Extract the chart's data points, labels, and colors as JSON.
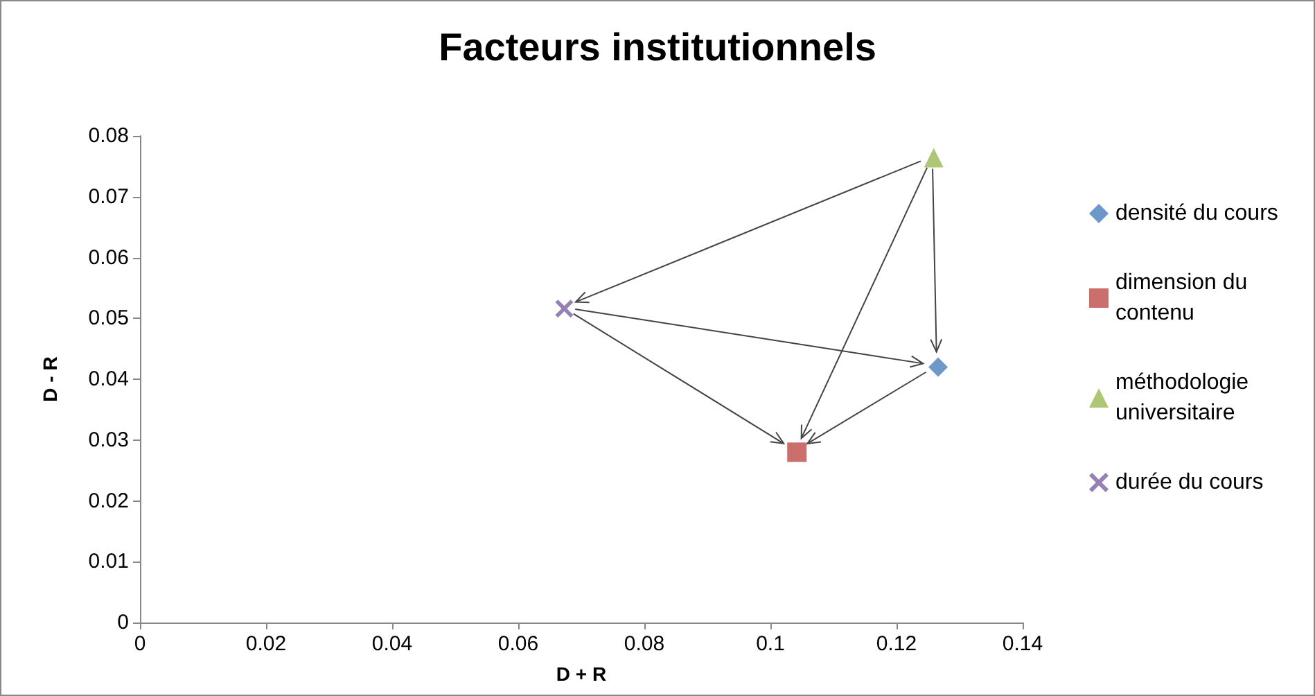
{
  "chart_data": {
    "type": "scatter",
    "title": "Facteurs institutionnels",
    "xlabel": "D + R",
    "ylabel": "D - R",
    "xlim": [
      0,
      0.14
    ],
    "xticks": [
      0,
      0.02,
      0.04,
      0.06,
      0.08,
      0.1,
      0.12,
      0.14
    ],
    "ylim": [
      0,
      0.08
    ],
    "yticks": [
      0,
      0.01,
      0.02,
      0.03,
      0.04,
      0.05,
      0.06,
      0.07,
      0.08
    ],
    "grid": false,
    "legend": "right",
    "series": [
      {
        "name": "densité du cours",
        "color": "#4a7ebb",
        "marker": "diamond",
        "x": [
          0.1266
        ],
        "values": [
          0.042
        ]
      },
      {
        "name": "dimension du contenu",
        "color": "#be4b48",
        "marker": "square",
        "x": [
          0.1042
        ],
        "values": [
          0.028
        ]
      },
      {
        "name": "méthodologie universitaire",
        "color": "#98b954",
        "marker": "triangle",
        "x": [
          0.1259
        ],
        "values": [
          0.0764
        ]
      },
      {
        "name": "durée du cours",
        "color": "#7d60a0",
        "marker": "cross",
        "x": [
          0.0673
        ],
        "values": [
          0.0516
        ]
      }
    ]
  }
}
